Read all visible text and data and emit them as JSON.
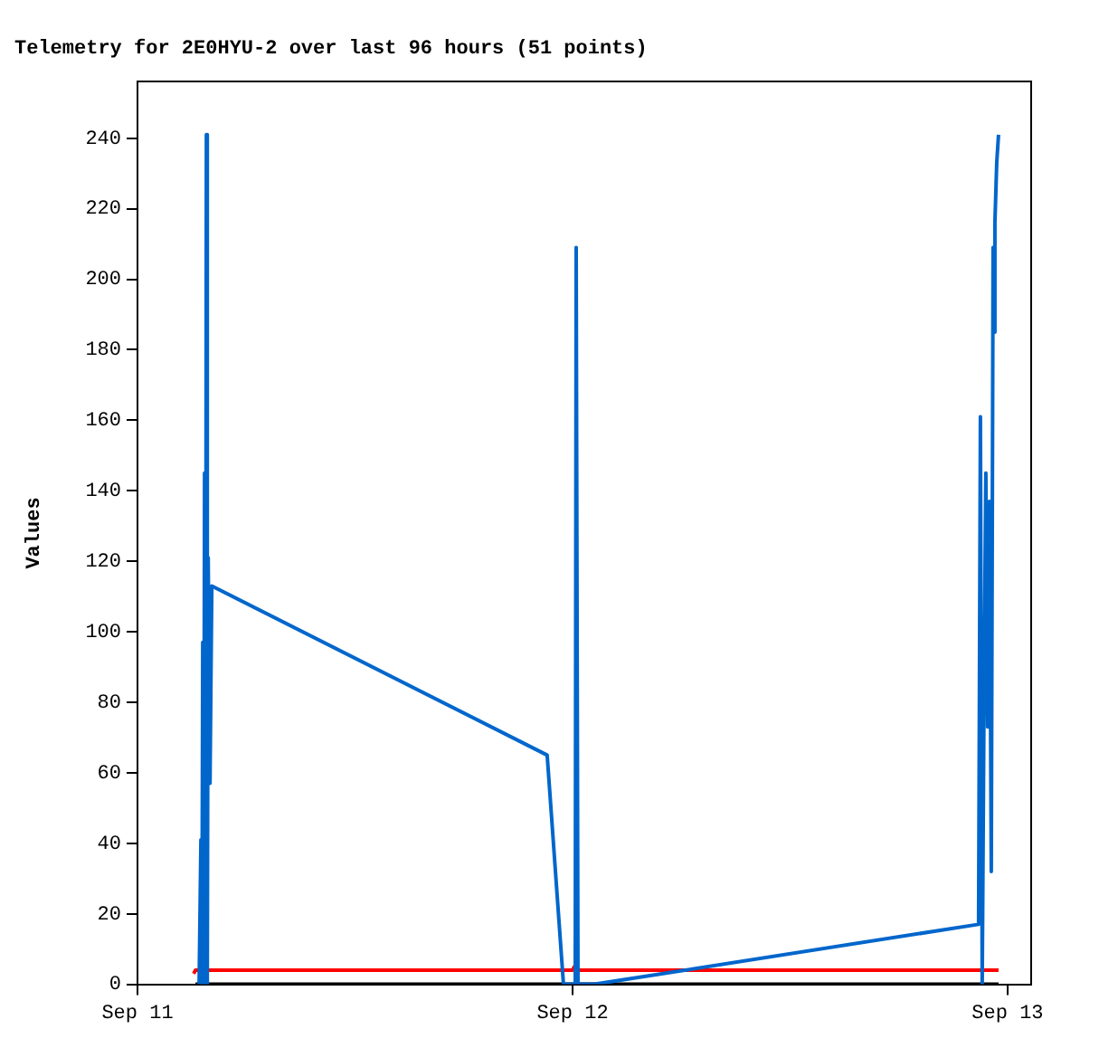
{
  "chart_data": {
    "type": "line",
    "title": "Telemetry for 2E0HYU-2 over last 96 hours (51 points)",
    "ylabel": "Values",
    "xlim": [
      "--09-11T00:00",
      "--09-13T01:18"
    ],
    "xticks": [
      {
        "value": "--09-11",
        "label": "Sep 11"
      },
      {
        "value": "--09-12",
        "label": "Sep 12"
      },
      {
        "value": "--09-13",
        "label": "Sep 13"
      }
    ],
    "ylim": [
      0,
      256
    ],
    "yticks": [
      0,
      20,
      40,
      60,
      80,
      100,
      120,
      140,
      160,
      180,
      200,
      220,
      240
    ],
    "grid": false,
    "legend": false,
    "marker": "none",
    "line_style": "solid",
    "series": [
      {
        "color": "#0066cc",
        "x": [
          "--09-11T03:24",
          "--09-11T03:30",
          "--09-11T03:33",
          "--09-11T03:36",
          "--09-11T03:39",
          "--09-11T03:42",
          "--09-11T03:45",
          "--09-11T03:48",
          "--09-11T03:51",
          "--09-11T03:54",
          "--09-11T04:00",
          "--09-11T04:06",
          "--09-11T22:36",
          "--09-11T23:30",
          "--09-12T00:09",
          "--09-12T00:12",
          "--09-12T00:18",
          "--09-12T01:12",
          "--09-12T22:24",
          "--09-12T22:30",
          "--09-12T22:36",
          "--09-12T22:42",
          "--09-12T22:48",
          "--09-12T22:54",
          "--09-12T23:00",
          "--09-12T23:06",
          "--09-12T23:12",
          "--09-12T23:15",
          "--09-12T23:18",
          "--09-12T23:24",
          "--09-12T23:30"
        ],
        "values": [
          0,
          41,
          0,
          97,
          0,
          145,
          0,
          241,
          0,
          121,
          57,
          113,
          65,
          0,
          0,
          209,
          0,
          0,
          17,
          161,
          0,
          81,
          145,
          73,
          137,
          32,
          209,
          185,
          216,
          233,
          241
        ]
      },
      {
        "color": "#ff0000",
        "x": [
          "--09-11T03:06",
          "--09-11T03:12",
          "--09-12T00:00",
          "--09-12T00:06",
          "--09-12T00:18",
          "--09-12T23:30"
        ],
        "values": [
          3,
          4,
          4,
          5,
          4,
          4
        ]
      },
      {
        "color": "#000000",
        "x": [
          "--09-11T03:12",
          "--09-12T23:30"
        ],
        "values": [
          0,
          0
        ]
      }
    ]
  }
}
